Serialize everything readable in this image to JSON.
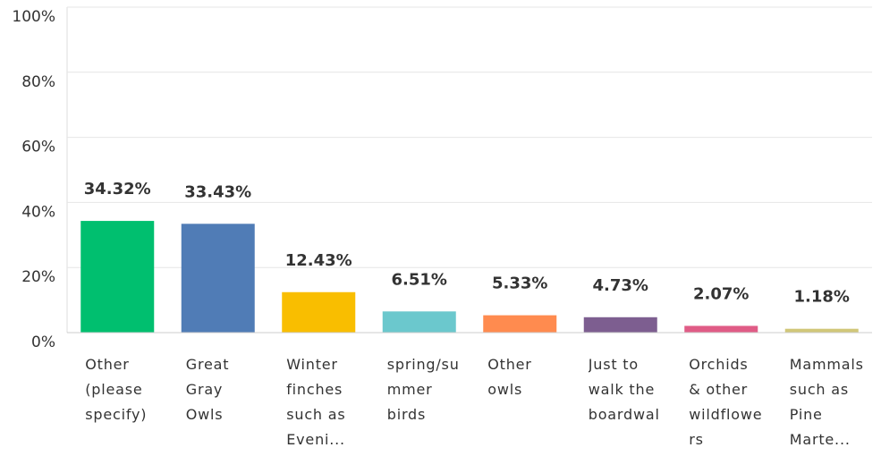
{
  "chart_data": {
    "type": "bar",
    "categories": [
      "Other (please specify)",
      "Great Gray Owls",
      "Winter finches such as Eveni...",
      "spring/summer birds",
      "Other owls",
      "Just to walk the boardwal",
      "Orchids & other wildflowers",
      "Mammals such as Pine Marte..."
    ],
    "values": [
      34.32,
      33.43,
      12.43,
      6.51,
      5.33,
      4.73,
      2.07,
      1.18
    ],
    "value_labels": [
      "34.32%",
      "33.43%",
      "12.43%",
      "6.51%",
      "5.33%",
      "4.73%",
      "2.07%",
      "1.18%"
    ],
    "colors": [
      "#00bf6f",
      "#507cb6",
      "#f9be00",
      "#6bc8cd",
      "#ff8b4f",
      "#7d5e90",
      "#e05c86",
      "#d1c779"
    ],
    "ylim": [
      0,
      100
    ],
    "yticks": [
      {
        "value": 0,
        "label": "0%"
      },
      {
        "value": 20,
        "label": "20%"
      },
      {
        "value": 40,
        "label": "40%"
      },
      {
        "value": 60,
        "label": "60%"
      },
      {
        "value": 80,
        "label": "80%"
      },
      {
        "value": 100,
        "label": "100%"
      }
    ],
    "grid": true
  }
}
